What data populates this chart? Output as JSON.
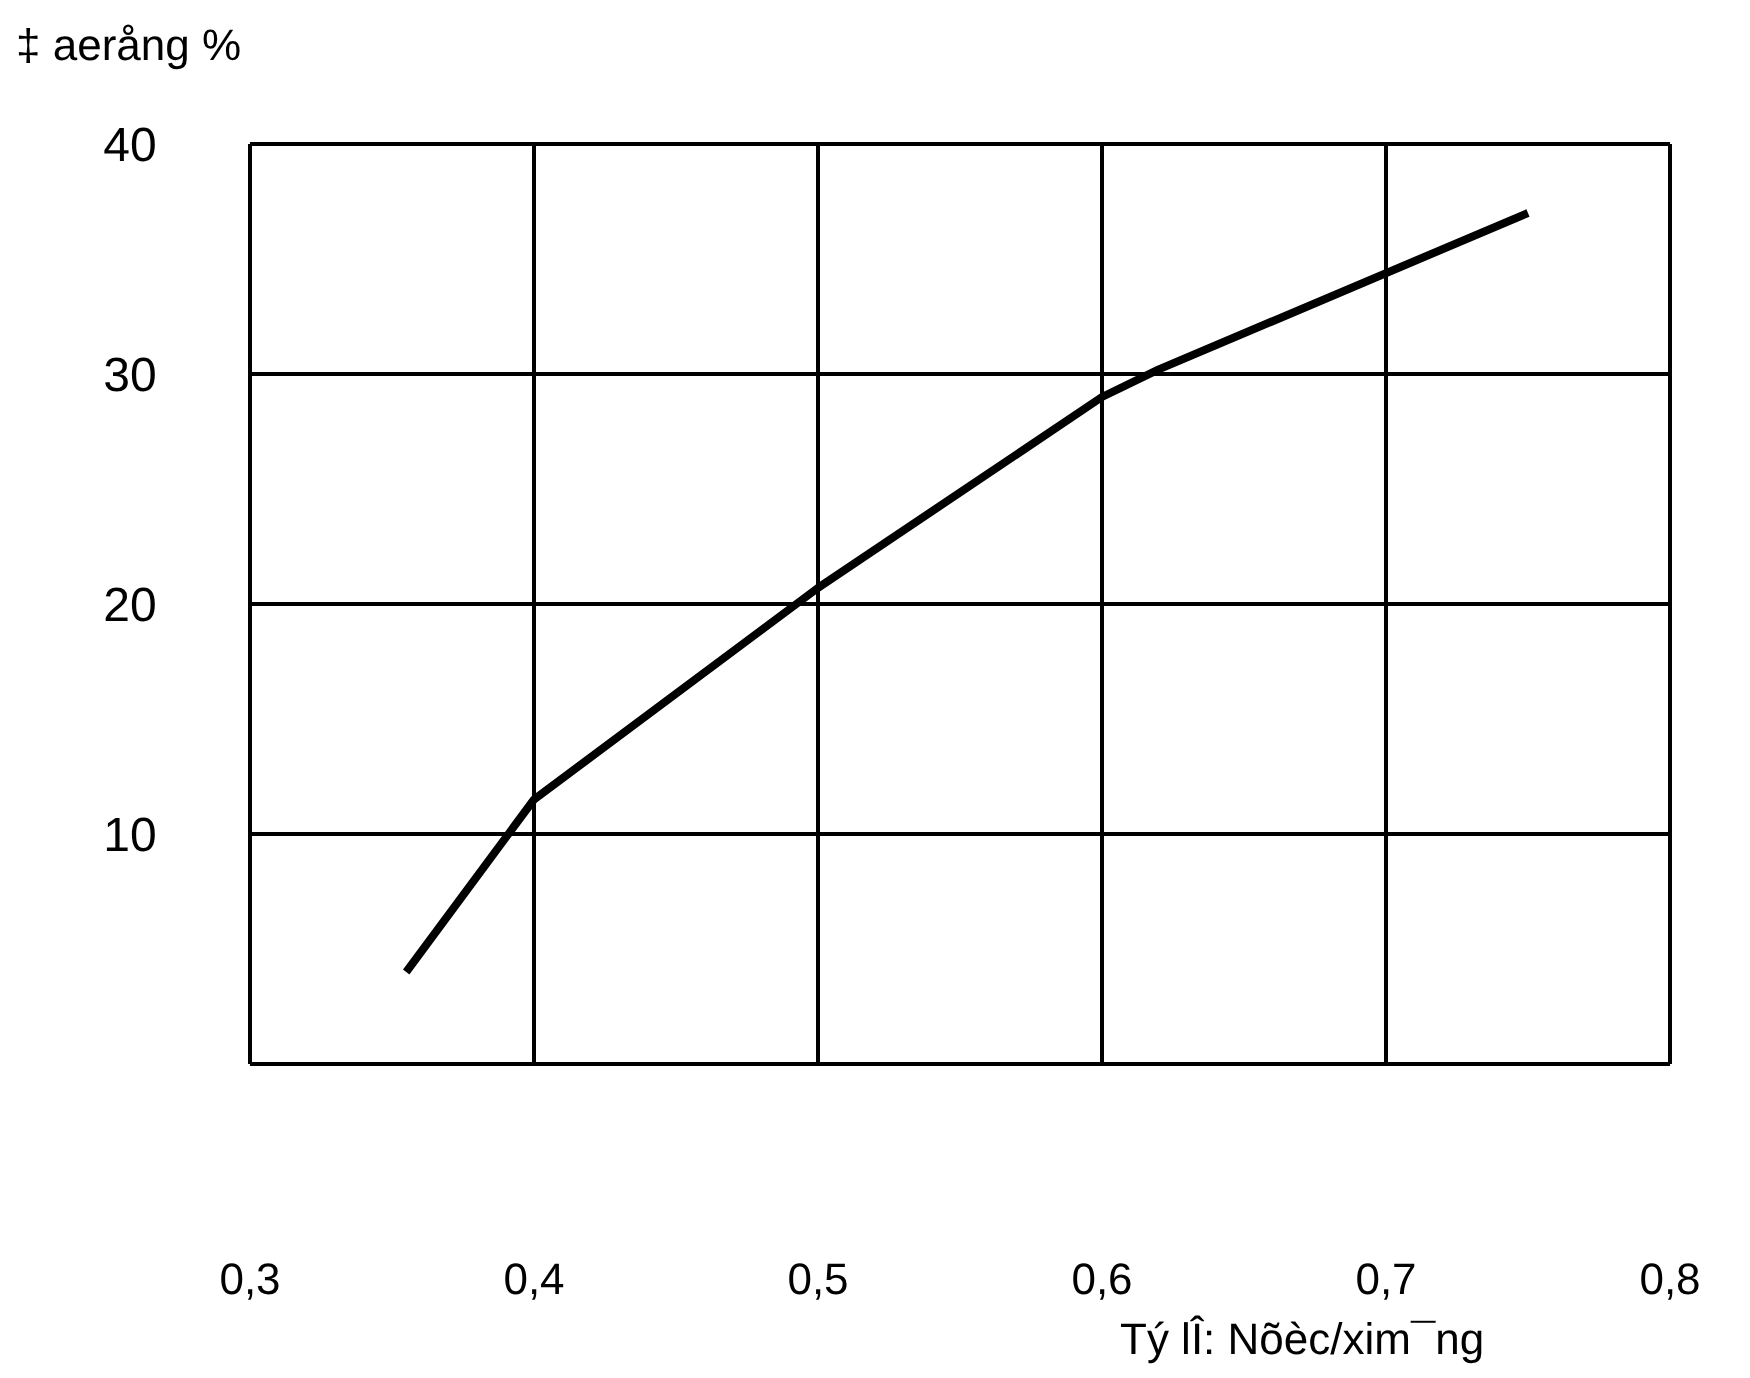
{
  "chart_data": {
    "type": "line",
    "xlabel": "Tý lÎ: Nõèc/xim¯ng",
    "ylabel": "‡ aerång %",
    "x": [
      0.355,
      0.4,
      0.5,
      0.6,
      0.62,
      0.75
    ],
    "series": [
      {
        "color": "#000000",
        "values": [
          4,
          11.5,
          20.7,
          29,
          30.2,
          37
        ]
      }
    ],
    "xlim": [
      0.3,
      0.8
    ],
    "xticks": [
      {
        "value": 0.3,
        "label": "0,3"
      },
      {
        "value": 0.4,
        "label": "0,4"
      },
      {
        "value": 0.5,
        "label": "0,5"
      },
      {
        "value": 0.6,
        "label": "0,6"
      },
      {
        "value": 0.7,
        "label": "0,7"
      },
      {
        "value": 0.8,
        "label": "0,8"
      }
    ],
    "ylim": [
      0,
      40
    ],
    "yticks": [
      10,
      20,
      30,
      40
    ],
    "grid": true,
    "marker": "none",
    "line_style": "solid"
  }
}
